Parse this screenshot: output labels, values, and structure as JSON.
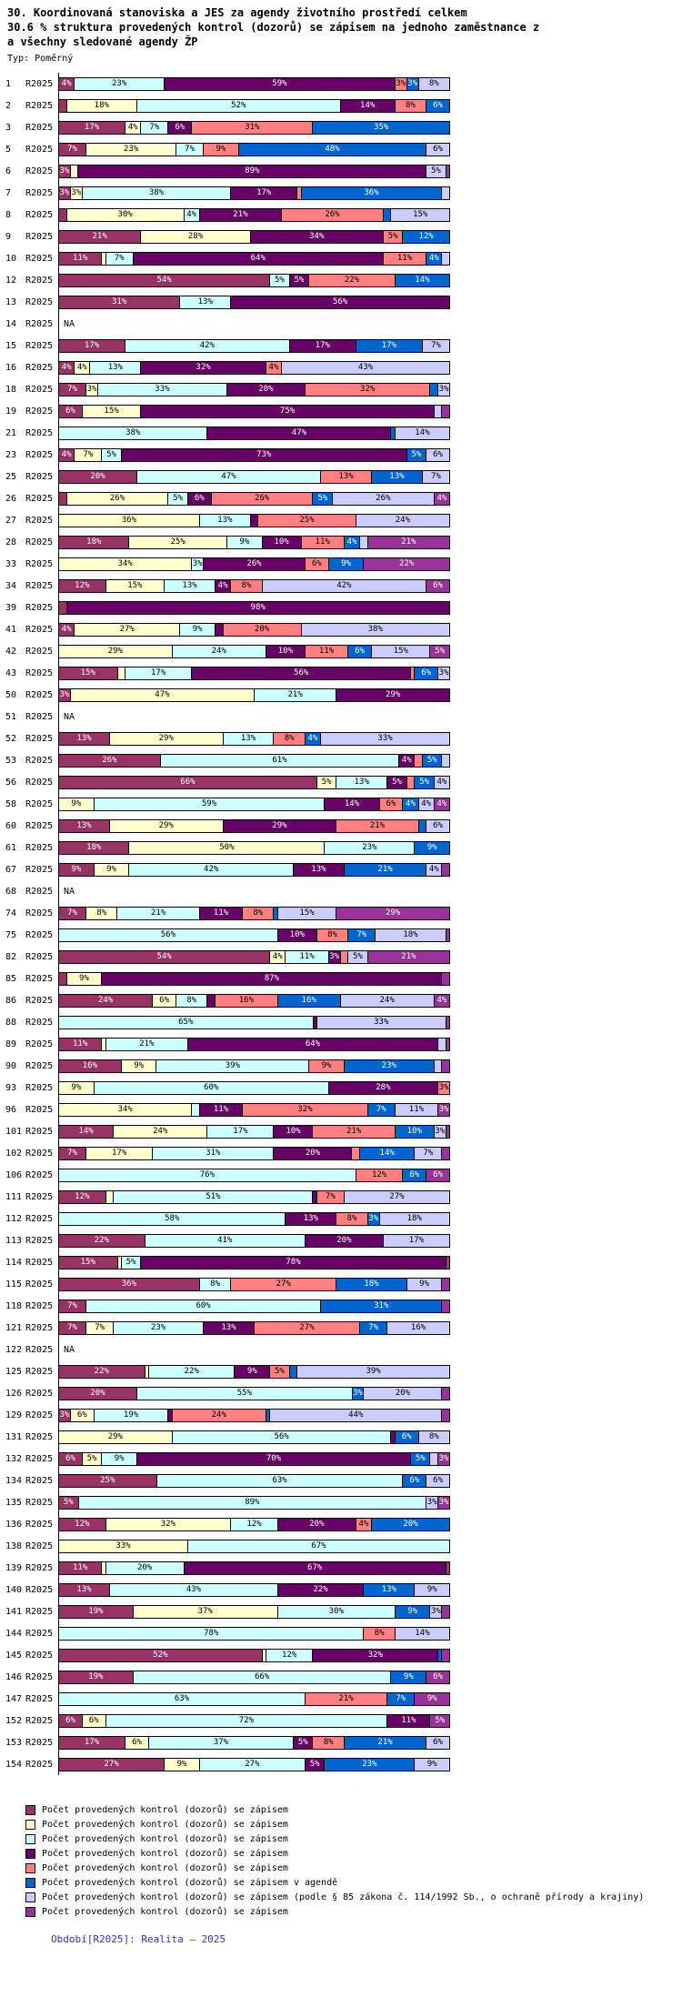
{
  "header": {
    "title_line1": "30. Koordinovaná stanoviska a JES za agendy životního prostředí celkem",
    "title_line2": "30.6 % struktura provedených kontrol (dozorů) se zápisem na jednoho zaměstnance z",
    "title_line3": "a všechny sledované agendy ŽP",
    "type_label": "Typ: Poměrný"
  },
  "chart_data": {
    "type": "bar",
    "variant": "horizontal-stacked",
    "unit": "%",
    "xlim": [
      0,
      100
    ],
    "period": "R2025",
    "na_text": "NA",
    "series": [
      {
        "name": "Počet provedených kontrol (dozorů) se zápisem",
        "color": "#993366",
        "dark": true
      },
      {
        "name": "Počet provedených kontrol (dozorů) se zápisem",
        "color": "#FFFFCC",
        "dark": false
      },
      {
        "name": "Počet provedených kontrol (dozorů) se zápisem",
        "color": "#CCFFFF",
        "dark": false
      },
      {
        "name": "Počet provedených kontrol (dozorů) se zápisem",
        "color": "#660066",
        "dark": true
      },
      {
        "name": "Počet provedených kontrol (dozorů) se zápisem",
        "color": "#FF8080",
        "dark": false
      },
      {
        "name": "Počet provedených kontrol (dozorů) se zápisem v agendě",
        "color": "#0066CC",
        "dark": true
      },
      {
        "name": "Počet provedených kontrol (dozorů) se zápisem (podle § 85 zákona č. 114/1992 Sb., o ochraně přírody a krajiny)",
        "color": "#CCCCFF",
        "dark": false
      },
      {
        "name": "Počet provedených kontrol (dozorů) se zápisem",
        "color": "#993399",
        "dark": true
      }
    ],
    "rows": [
      {
        "id": "1",
        "values": [
          4,
          0,
          23,
          59,
          3,
          3,
          8,
          0
        ]
      },
      {
        "id": "2",
        "values": [
          2,
          18,
          52,
          14,
          8,
          6,
          0,
          0
        ]
      },
      {
        "id": "3",
        "values": [
          17,
          4,
          7,
          6,
          31,
          35,
          0,
          0
        ]
      },
      {
        "id": "5",
        "values": [
          7,
          23,
          7,
          0,
          9,
          48,
          6,
          0
        ]
      },
      {
        "id": "6",
        "values": [
          3,
          2,
          0,
          89,
          0,
          0,
          5,
          1
        ]
      },
      {
        "id": "7",
        "values": [
          3,
          3,
          38,
          17,
          1,
          36,
          2,
          0
        ]
      },
      {
        "id": "8",
        "values": [
          2,
          30,
          4,
          21,
          26,
          2,
          15,
          0
        ]
      },
      {
        "id": "9",
        "values": [
          21,
          28,
          0,
          34,
          5,
          12,
          0,
          0
        ]
      },
      {
        "id": "10",
        "values": [
          11,
          1,
          7,
          64,
          11,
          4,
          2,
          0
        ]
      },
      {
        "id": "12",
        "values": [
          54,
          0,
          5,
          5,
          22,
          14,
          0,
          0
        ]
      },
      {
        "id": "13",
        "values": [
          31,
          0,
          13,
          56,
          0,
          0,
          0,
          0
        ]
      },
      {
        "id": "14",
        "na": true
      },
      {
        "id": "15",
        "values": [
          17,
          0,
          42,
          17,
          0,
          17,
          7,
          0
        ]
      },
      {
        "id": "16",
        "values": [
          4,
          4,
          13,
          32,
          4,
          0,
          43,
          0
        ]
      },
      {
        "id": "18",
        "values": [
          7,
          3,
          33,
          20,
          32,
          2,
          3,
          0
        ]
      },
      {
        "id": "19",
        "values": [
          6,
          15,
          0,
          75,
          0,
          0,
          2,
          2
        ]
      },
      {
        "id": "21",
        "values": [
          0,
          0,
          38,
          47,
          0,
          1,
          14,
          0
        ]
      },
      {
        "id": "23",
        "values": [
          4,
          7,
          5,
          73,
          0,
          5,
          6,
          0
        ]
      },
      {
        "id": "25",
        "values": [
          20,
          0,
          47,
          0,
          13,
          13,
          7,
          0
        ]
      },
      {
        "id": "26",
        "values": [
          2,
          26,
          5,
          6,
          26,
          5,
          26,
          4
        ]
      },
      {
        "id": "27",
        "values": [
          0,
          36,
          13,
          2,
          25,
          0,
          24,
          0
        ]
      },
      {
        "id": "28",
        "values": [
          18,
          25,
          9,
          10,
          11,
          4,
          2,
          21
        ]
      },
      {
        "id": "33",
        "values": [
          0,
          34,
          3,
          26,
          6,
          9,
          0,
          22
        ]
      },
      {
        "id": "34",
        "values": [
          12,
          15,
          13,
          4,
          8,
          0,
          42,
          6
        ]
      },
      {
        "id": "39",
        "values": [
          2,
          0,
          0,
          98,
          0,
          0,
          0,
          0
        ]
      },
      {
        "id": "41",
        "values": [
          4,
          27,
          9,
          2,
          20,
          0,
          38,
          0
        ]
      },
      {
        "id": "42",
        "values": [
          0,
          29,
          24,
          10,
          11,
          6,
          15,
          5
        ]
      },
      {
        "id": "43",
        "values": [
          15,
          2,
          17,
          56,
          1,
          6,
          3,
          0
        ]
      },
      {
        "id": "50",
        "values": [
          3,
          47,
          21,
          29,
          0,
          0,
          0,
          0
        ]
      },
      {
        "id": "51",
        "na": true
      },
      {
        "id": "52",
        "values": [
          13,
          29,
          13,
          0,
          8,
          4,
          33,
          0
        ]
      },
      {
        "id": "53",
        "values": [
          26,
          0,
          61,
          4,
          2,
          5,
          2,
          0
        ]
      },
      {
        "id": "56",
        "values": [
          66,
          5,
          13,
          5,
          2,
          5,
          4,
          0
        ]
      },
      {
        "id": "58",
        "values": [
          0,
          9,
          59,
          14,
          6,
          4,
          4,
          4
        ]
      },
      {
        "id": "60",
        "values": [
          13,
          29,
          0,
          29,
          21,
          2,
          6,
          0
        ]
      },
      {
        "id": "61",
        "values": [
          18,
          50,
          23,
          0,
          0,
          9,
          0,
          0
        ]
      },
      {
        "id": "67",
        "values": [
          9,
          9,
          42,
          13,
          0,
          21,
          4,
          2
        ]
      },
      {
        "id": "68",
        "na": true
      },
      {
        "id": "74",
        "values": [
          7,
          8,
          21,
          11,
          8,
          1,
          15,
          29
        ]
      },
      {
        "id": "75",
        "values": [
          0,
          0,
          56,
          10,
          8,
          7,
          18,
          1
        ]
      },
      {
        "id": "82",
        "values": [
          54,
          4,
          11,
          3,
          2,
          0,
          5,
          21
        ]
      },
      {
        "id": "85",
        "values": [
          2,
          9,
          0,
          87,
          0,
          0,
          0,
          2
        ]
      },
      {
        "id": "86",
        "values": [
          24,
          6,
          8,
          2,
          16,
          16,
          24,
          4
        ]
      },
      {
        "id": "88",
        "values": [
          0,
          0,
          65,
          1,
          0,
          0,
          33,
          1
        ]
      },
      {
        "id": "89",
        "values": [
          11,
          1,
          21,
          64,
          0,
          0,
          2,
          1
        ]
      },
      {
        "id": "90",
        "values": [
          16,
          9,
          39,
          0,
          9,
          23,
          2,
          2
        ]
      },
      {
        "id": "93",
        "values": [
          0,
          9,
          60,
          28,
          3,
          0,
          0,
          0
        ]
      },
      {
        "id": "96",
        "values": [
          0,
          34,
          2,
          11,
          32,
          7,
          11,
          3
        ]
      },
      {
        "id": "101",
        "values": [
          14,
          24,
          17,
          10,
          21,
          10,
          3,
          1
        ]
      },
      {
        "id": "102",
        "values": [
          7,
          17,
          31,
          20,
          2,
          14,
          7,
          2
        ]
      },
      {
        "id": "106",
        "values": [
          0,
          0,
          76,
          0,
          12,
          6,
          0,
          6
        ]
      },
      {
        "id": "111",
        "values": [
          12,
          2,
          51,
          1,
          7,
          0,
          27,
          0
        ]
      },
      {
        "id": "112",
        "values": [
          0,
          0,
          58,
          13,
          8,
          3,
          18,
          0
        ]
      },
      {
        "id": "113",
        "values": [
          22,
          0,
          41,
          20,
          0,
          0,
          17,
          0
        ]
      },
      {
        "id": "114",
        "values": [
          15,
          1,
          5,
          78,
          0,
          0,
          0,
          1
        ]
      },
      {
        "id": "115",
        "values": [
          36,
          0,
          8,
          0,
          27,
          18,
          9,
          2
        ]
      },
      {
        "id": "118",
        "values": [
          7,
          0,
          60,
          0,
          0,
          31,
          0,
          2
        ]
      },
      {
        "id": "121",
        "values": [
          7,
          7,
          23,
          13,
          27,
          7,
          16,
          0
        ]
      },
      {
        "id": "122",
        "na": true
      },
      {
        "id": "125",
        "values": [
          22,
          1,
          22,
          9,
          5,
          2,
          39,
          0
        ]
      },
      {
        "id": "126",
        "values": [
          20,
          0,
          55,
          0,
          0,
          3,
          20,
          2
        ]
      },
      {
        "id": "129",
        "values": [
          3,
          6,
          19,
          1,
          24,
          1,
          44,
          2
        ]
      },
      {
        "id": "131",
        "values": [
          0,
          29,
          56,
          1,
          0,
          6,
          8,
          0
        ]
      },
      {
        "id": "132",
        "values": [
          6,
          5,
          9,
          70,
          0,
          5,
          2,
          3
        ]
      },
      {
        "id": "134",
        "values": [
          25,
          0,
          63,
          0,
          0,
          6,
          6,
          0
        ]
      },
      {
        "id": "135",
        "values": [
          5,
          0,
          89,
          0,
          0,
          0,
          3,
          3
        ]
      },
      {
        "id": "136",
        "values": [
          12,
          32,
          12,
          20,
          4,
          20,
          0,
          0
        ]
      },
      {
        "id": "138",
        "values": [
          0,
          33,
          67,
          0,
          0,
          0,
          0,
          0
        ]
      },
      {
        "id": "139",
        "values": [
          11,
          1,
          20,
          67,
          0,
          0,
          0,
          1
        ]
      },
      {
        "id": "140",
        "values": [
          13,
          0,
          43,
          22,
          0,
          13,
          9,
          0
        ]
      },
      {
        "id": "141",
        "values": [
          19,
          37,
          30,
          0,
          0,
          9,
          3,
          2
        ]
      },
      {
        "id": "144",
        "values": [
          0,
          0,
          78,
          0,
          8,
          0,
          14,
          0
        ]
      },
      {
        "id": "145",
        "values": [
          52,
          1,
          12,
          32,
          0,
          1,
          0,
          2
        ]
      },
      {
        "id": "146",
        "values": [
          19,
          0,
          66,
          0,
          0,
          9,
          0,
          6
        ]
      },
      {
        "id": "147",
        "values": [
          0,
          0,
          63,
          0,
          21,
          7,
          0,
          9
        ]
      },
      {
        "id": "152",
        "values": [
          6,
          6,
          72,
          11,
          0,
          0,
          0,
          5
        ]
      },
      {
        "id": "153",
        "values": [
          17,
          6,
          37,
          5,
          8,
          21,
          6,
          0
        ]
      },
      {
        "id": "154",
        "values": [
          27,
          9,
          27,
          5,
          0,
          23,
          9,
          0
        ]
      }
    ]
  },
  "footer": {
    "text": "Období[R2025]: Realita – 2025",
    "color": "#3333CC"
  }
}
